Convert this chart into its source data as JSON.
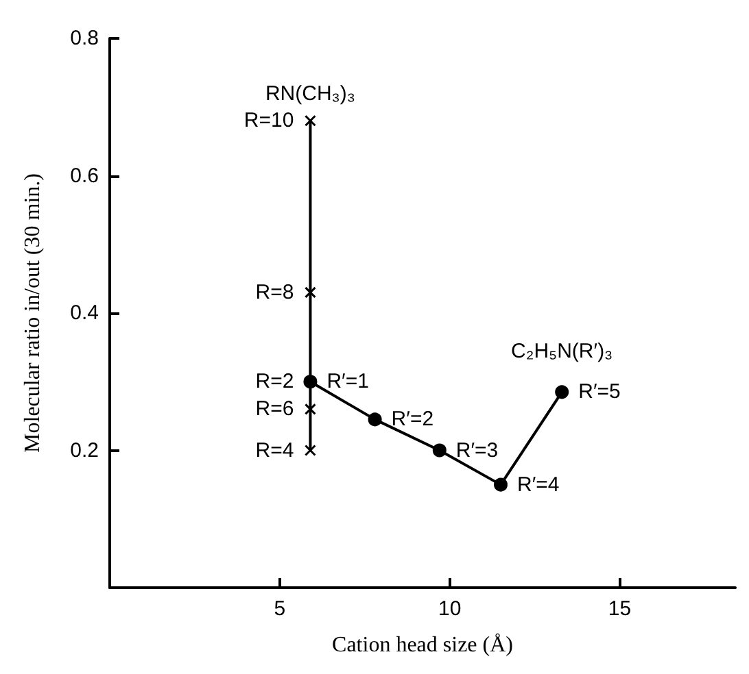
{
  "chart_data": {
    "type": "line",
    "xlabel": "Cation head size (Å)",
    "ylabel": "Molecular ratio in/out (30 min.)",
    "xlim": [
      0,
      18.4
    ],
    "xticks": [
      5,
      10,
      15
    ],
    "ylim": [
      0,
      0.8
    ],
    "yticks": [
      0.2,
      0.4,
      0.6,
      0.8
    ],
    "legend": false,
    "grid": false,
    "series": [
      {
        "name": "RN(CH₃)₃",
        "color": "#000000",
        "marker": "cross",
        "x": [
          5.9,
          5.9,
          5.9,
          5.9
        ],
        "values": [
          0.68,
          0.43,
          0.26,
          0.2
        ]
      },
      {
        "name": "C₂H₅N(R′)₃",
        "color": "#000000",
        "marker": "circle",
        "x": [
          5.9,
          7.8,
          9.7,
          11.5,
          13.3
        ],
        "values": [
          0.3,
          0.245,
          0.2,
          0.15,
          0.285
        ]
      }
    ],
    "annotations": [
      {
        "text": "R=10",
        "x": 5.9,
        "y": 0.68
      },
      {
        "text": "R=8",
        "x": 5.9,
        "y": 0.43
      },
      {
        "text": "R=2",
        "x": 5.9,
        "y": 0.3
      },
      {
        "text": "R′=1",
        "x": 5.9,
        "y": 0.3
      },
      {
        "text": "R=6",
        "x": 5.9,
        "y": 0.26
      },
      {
        "text": "R=4",
        "x": 5.9,
        "y": 0.2
      },
      {
        "text": "R′=2",
        "x": 7.8,
        "y": 0.245
      },
      {
        "text": "R′=3",
        "x": 9.7,
        "y": 0.2
      },
      {
        "text": "R′=4",
        "x": 11.5,
        "y": 0.15
      },
      {
        "text": "R′=5",
        "x": 13.3,
        "y": 0.285
      }
    ]
  }
}
